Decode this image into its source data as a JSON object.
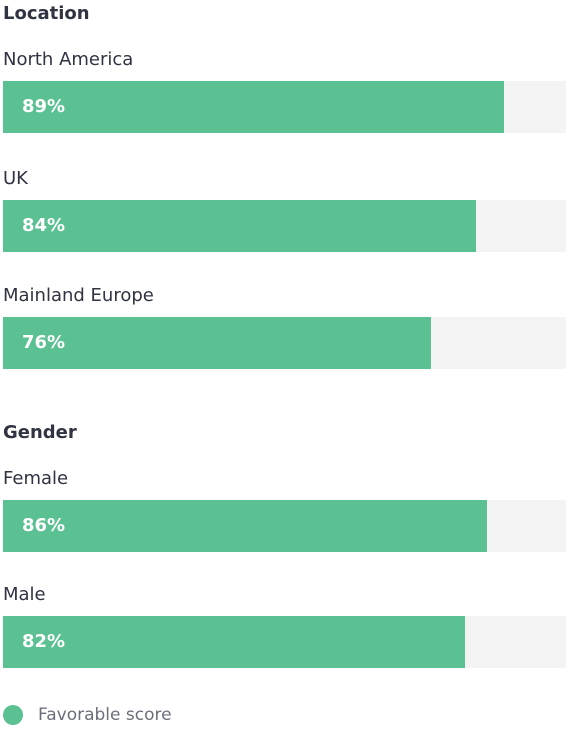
{
  "chart_data": {
    "type": "bar",
    "orientation": "horizontal",
    "xlim": [
      0,
      100
    ],
    "groups": [
      {
        "title": "Location",
        "categories": [
          "North America",
          "UK",
          "Mainland Europe"
        ],
        "values": [
          89,
          84,
          76
        ],
        "value_labels": [
          "89%",
          "84%",
          "76%"
        ]
      },
      {
        "title": "Gender",
        "categories": [
          "Female",
          "Male"
        ],
        "values": [
          86,
          82
        ],
        "value_labels": [
          "86%",
          "82%"
        ]
      }
    ],
    "series": [
      {
        "name": "Favorable score",
        "color": "#5bc193"
      }
    ],
    "track_color": "#f4f4f4",
    "legend_position": "bottom-left",
    "grid": false
  }
}
